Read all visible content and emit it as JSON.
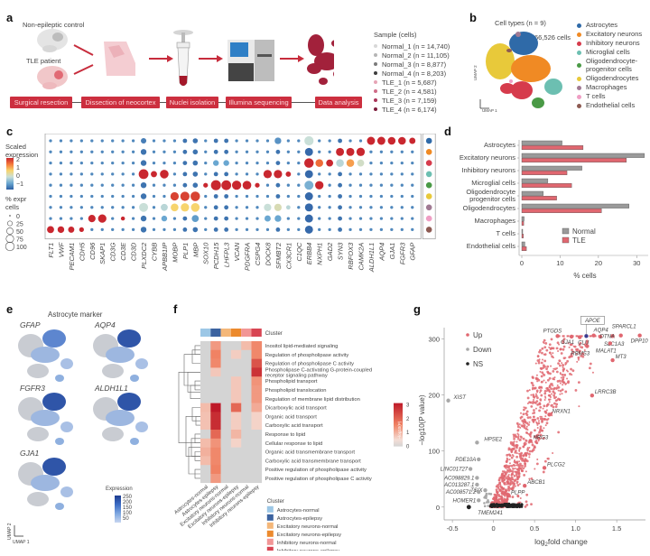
{
  "panels": {
    "a": {
      "letter": "a",
      "control_label": "Non-epileptic control",
      "patient_label": "TLE patient",
      "steps": [
        "Surgical resection",
        "Dissection of neocortex",
        "Nuclei isolation",
        "Illumina sequencing",
        "Data analysis"
      ],
      "sample_title": "Sample (cells)",
      "samples": [
        {
          "label": "Normal_1 (n = 14,740)",
          "color": "#d8d8d8"
        },
        {
          "label": "Normal_2 (n = 11,105)",
          "color": "#b5b5b5"
        },
        {
          "label": "Normal_3 (n = 8,877)",
          "color": "#7a7a7a"
        },
        {
          "label": "Normal_4 (n = 8,203)",
          "color": "#3d3d3d"
        },
        {
          "label": "TLE_1 (n = 5,687)",
          "color": "#e7a5b6"
        },
        {
          "label": "TLE_2 (n = 4,581)",
          "color": "#cf6c88"
        },
        {
          "label": "TLE_3 (n = 7,159)",
          "color": "#a93459"
        },
        {
          "label": "TLE_4 (n = 6,174)",
          "color": "#7d1d3c"
        }
      ]
    },
    "b": {
      "letter": "b",
      "title": "Cell types (n = 9)",
      "cell_count": "66,526 cells",
      "umap1": "UMAP 1",
      "umap2": "UMAP 2",
      "cell_types": [
        {
          "label": "Astrocytes",
          "color": "#2f6aa8"
        },
        {
          "label": "Excitatory neurons",
          "color": "#f08a24"
        },
        {
          "label": "Inhibitory neurons",
          "color": "#d63b4c"
        },
        {
          "label": "Microglial cells",
          "color": "#6cbfb1"
        },
        {
          "label": "Oligodendrocyte-\nprogenitor cells",
          "color": "#4a9a46"
        },
        {
          "label": "Oligodendrocytes",
          "color": "#e8c93a"
        },
        {
          "label": "Macrophages",
          "color": "#a07a93"
        },
        {
          "label": "T cells",
          "color": "#ef9ec4"
        },
        {
          "label": "Endothelial cells",
          "color": "#8d5a52"
        }
      ]
    },
    "c": {
      "letter": "c",
      "scale_title_1": "Scaled",
      "scale_title_2": "expression",
      "scale_ticks": [
        "2",
        "1",
        "0",
        "−1"
      ],
      "pct_title_1": "% expr",
      "pct_title_2": "cells",
      "pct_ticks": [
        "0",
        "25",
        "50",
        "75",
        "100"
      ]
    },
    "d": {
      "letter": "d"
    },
    "e": {
      "letter": "e",
      "title": "Astrocyte marker",
      "genes": [
        "GFAP",
        "AQP4",
        "FGFR3",
        "ALDH1L1",
        "GJA1"
      ],
      "expr_title": "Expression",
      "expr_ticks": [
        "250",
        "200",
        "150",
        "100",
        "50"
      ],
      "umap1": "UMAP 1",
      "umap2": "UMAP 2"
    },
    "f": {
      "letter": "f",
      "cluster_label": "Cluster",
      "scale_ticks": [
        "3",
        "2",
        "1",
        "0"
      ],
      "scale_title": "−log10(P)",
      "legend_title": "Cluster"
    },
    "g": {
      "letter": "g"
    }
  },
  "chart_data": [
    {
      "id": "c",
      "type": "dotplot",
      "title": "",
      "xlabel": "",
      "ylabel": "",
      "genes": [
        "FLT1",
        "VWF",
        "PECAM1",
        "CDH5",
        "CD96",
        "SKAP1",
        "CD3G",
        "CD3E",
        "CD3D",
        "PLXDC2",
        "CYBB",
        "APBB1IP",
        "MOBP",
        "PLP1",
        "MBP",
        "SOX10",
        "PCDH15",
        "LHFPL3",
        "VCAN",
        "PDGFRA",
        "CSPG4",
        "DOCK8",
        "SFMBT2",
        "CX3CR1",
        "C1QC",
        "ERBB4",
        "NXPH1",
        "GAD2",
        "SYN3",
        "RBFOX3",
        "CAMK2A",
        "ALDH1L1",
        "AQP4",
        "GJA1",
        "FGFR3",
        "GFAP"
      ],
      "rows": [
        "Astrocytes",
        "Excitatory neurons",
        "Inhibitory neurons",
        "Microglial cells",
        "Oligodendrocyte progenitor cells",
        "Oligodendrocytes",
        "Macrophages",
        "T cells",
        "Endothelial cells"
      ],
      "row_colors": [
        "#2f6aa8",
        "#f08a24",
        "#d63b4c",
        "#6cbfb1",
        "#4a9a46",
        "#e8c93a",
        "#a07a93",
        "#ef9ec4",
        "#8d5a52"
      ],
      "color_range": [
        -1,
        2
      ],
      "size_range": [
        0,
        100
      ],
      "notable": [
        {
          "row": "Endothelial cells",
          "genes": [
            "FLT1",
            "VWF",
            "PECAM1",
            "CDH5"
          ],
          "scaled": 2,
          "pct": [
            40,
            35,
            30,
            15
          ]
        },
        {
          "row": "T cells",
          "genes": [
            "CD96",
            "SKAP1",
            "CD3E"
          ],
          "scaled": 2,
          "pct": [
            45,
            60,
            10
          ]
        },
        {
          "row": "Microglial cells",
          "genes": [
            "PLXDC2",
            "CYBB",
            "APBB1IP",
            "DOCK8",
            "SFMBT2",
            "CX3CR1"
          ],
          "scaled": 2,
          "pct": [
            85,
            30,
            65,
            60,
            60,
            20
          ]
        },
        {
          "row": "Oligodendrocytes",
          "genes": [
            "MOBP",
            "PLP1",
            "MBP"
          ],
          "scaled": 1.8,
          "pct": [
            60,
            75,
            80
          ]
        },
        {
          "row": "Oligodendrocyte progenitor cells",
          "genes": [
            "SOX10",
            "PCDH15",
            "LHFPL3",
            "VCAN",
            "PDGFRA",
            "CSPG4",
            "NXPH1"
          ],
          "scaled": 2,
          "pct": [
            15,
            90,
            85,
            75,
            65,
            15,
            60
          ]
        },
        {
          "row": "Inhibitory neurons",
          "genes": [
            "ERBB4",
            "NXPH1",
            "GAD2",
            "SYN3",
            "RBFOX3",
            "CAMK2A"
          ],
          "scaled": [
            2,
            1.5,
            2,
            0.2,
            1.2,
            0.4
          ],
          "pct": [
            80,
            50,
            40,
            50,
            50,
            40
          ]
        },
        {
          "row": "Excitatory neurons",
          "genes": [
            "SYN3",
            "RBFOX3",
            "CAMK2A"
          ],
          "scaled": 2,
          "pct": [
            55,
            55,
            60
          ]
        },
        {
          "row": "Astrocytes",
          "genes": [
            "ALDH1L1",
            "AQP4",
            "GJA1",
            "FGFR3",
            "GFAP"
          ],
          "scaled": 2,
          "pct": [
            55,
            55,
            50,
            50,
            30
          ]
        }
      ]
    },
    {
      "id": "d",
      "type": "bar",
      "orientation": "horizontal",
      "title": "",
      "xlabel": "% cells",
      "ylabel": "",
      "categories": [
        "Astrocytes",
        "Excitatory neurons",
        "Inhibitory neurons",
        "Microglial cells",
        "Oligodendrocyte progenitor cells",
        "Oligodendrocytes",
        "Macrophages",
        "T cells",
        "Endothelial cells"
      ],
      "category_labels": [
        "Astrocytes",
        "Excitatory neurons",
        "Inhibitory neurons",
        "Microglial cells",
        "Oligodendrocyte\nprogenitor cells",
        "Oligodendrocytes",
        "Macrophages",
        "T cells",
        "Endothelial cells"
      ],
      "series": [
        {
          "name": "Normal",
          "color": "#9a9a9a",
          "values": [
            10.5,
            32,
            15.7,
            6.8,
            5.6,
            28,
            0.6,
            0.2,
            0.8
          ]
        },
        {
          "name": "TLE",
          "color": "#e06770",
          "values": [
            16,
            27.3,
            11.8,
            13,
            9.1,
            20.8,
            0.5,
            0.4,
            1.2
          ]
        }
      ],
      "xlim": [
        0,
        33
      ],
      "xticks": [
        0,
        10,
        20,
        30
      ],
      "legend": "bottom-right"
    },
    {
      "id": "f",
      "type": "heatmap",
      "title": "",
      "columns": [
        "Astrocytes-normal",
        "Astrocytes-epilepsy",
        "Excitatory neurons-normal",
        "Excitatory neurons-epilepsy",
        "Inhibitory neurons-normal",
        "Inhibitory neurons-epilepsy"
      ],
      "column_colors": [
        "#9cc7e6",
        "#3c63a0",
        "#f4b779",
        "#ec8a2d",
        "#f29696",
        "#d84553"
      ],
      "rows": [
        "Inositol lipid-mediated signaling",
        "Regulation of phospholipase activity",
        "Regulation of phospholipase C activity",
        "Phospholipase C-activating G-protein-coupled\nreceptor signaling pathway",
        "Phospholipid transport",
        "Phospholipid translocation",
        "Regulation of membrane lipid distribution",
        "Dicarboxylic acid transport",
        "Organic acid transport",
        "Carboxylic acid transport",
        "Response to lipid",
        "Cellular response to lipid",
        "Organic acid transmembrane transport",
        "Carboxylic acid transmembrane transport",
        "Positive regulation of phospholipase activity",
        "Positive regulation of phospholipase C activity"
      ],
      "values": [
        [
          0,
          1.2,
          0,
          0,
          0.6,
          1.5
        ],
        [
          0,
          1.6,
          0,
          0.3,
          0,
          1.5
        ],
        [
          0,
          1.5,
          0,
          0,
          0,
          2.3
        ],
        [
          0,
          0.4,
          0,
          0,
          0,
          2.8
        ],
        [
          0,
          0,
          0,
          0.4,
          0,
          1.3
        ],
        [
          0,
          0,
          0,
          0.4,
          0,
          1.2
        ],
        [
          0,
          0,
          0,
          0.4,
          0,
          1.2
        ],
        [
          0.6,
          3.2,
          0,
          2.0,
          0,
          0.9
        ],
        [
          0.5,
          2.9,
          0,
          0.3,
          0,
          0.2
        ],
        [
          0.5,
          2.9,
          0,
          0.3,
          0,
          0.2
        ],
        [
          0,
          2.0,
          0,
          0.7,
          0,
          0
        ],
        [
          0.6,
          1.3,
          0,
          0.2,
          0,
          0
        ],
        [
          0.8,
          1.5,
          0,
          0,
          0,
          0
        ],
        [
          0.6,
          1.5,
          0,
          0,
          0,
          0
        ],
        [
          0,
          1.6,
          0,
          0,
          0,
          0
        ],
        [
          0,
          1.2,
          0,
          0,
          0,
          0
        ]
      ],
      "color_range": [
        0,
        3
      ],
      "legend_title": "−log10(P)"
    },
    {
      "id": "g",
      "type": "scatter",
      "title": "",
      "xlabel": "log2fold change",
      "ylabel": "−log10(P value)",
      "xlim": [
        -0.6,
        1.85
      ],
      "ylim": [
        -10,
        320
      ],
      "xticks": [
        -0.5,
        0,
        0.5,
        1.0,
        1.5
      ],
      "xtick_labels": [
        "-0.5",
        "0",
        "0.5",
        "1.0",
        "1.5"
      ],
      "yticks": [
        0,
        100,
        200,
        300
      ],
      "legend": [
        {
          "name": "Up",
          "color": "#e06770"
        },
        {
          "name": "Down",
          "color": "#a8a8a8"
        },
        {
          "name": "NS",
          "color": "#222222"
        }
      ],
      "labeled_points": [
        {
          "gene": "APOE",
          "x": 1.13,
          "y": 305,
          "group": "highlight",
          "boxed": true
        },
        {
          "gene": "PTGDS",
          "x": 0.78,
          "y": 305,
          "group": "Up"
        },
        {
          "gene": "GJA1",
          "x": 0.95,
          "y": 304,
          "group": "Up"
        },
        {
          "gene": "CLU",
          "x": 1.05,
          "y": 303,
          "group": "Up"
        },
        {
          "gene": "AQP4",
          "x": 1.22,
          "y": 306,
          "group": "Up"
        },
        {
          "gene": "SLC1A3",
          "x": 1.3,
          "y": 304,
          "group": "Up"
        },
        {
          "gene": "SPARCL1",
          "x": 1.55,
          "y": 306,
          "group": "Up"
        },
        {
          "gene": "DTNA",
          "x": 1.45,
          "y": 305,
          "group": "Up"
        },
        {
          "gene": "DPP10",
          "x": 1.78,
          "y": 306,
          "group": "Up"
        },
        {
          "gene": "MALAT1",
          "x": 1.42,
          "y": 292,
          "group": "Up"
        },
        {
          "gene": "RBMS3",
          "x": 1.14,
          "y": 287,
          "group": "Up"
        },
        {
          "gene": "MT3",
          "x": 1.45,
          "y": 262,
          "group": "Up"
        },
        {
          "gene": "LRRC3B",
          "x": 1.2,
          "y": 199,
          "group": "Up"
        },
        {
          "gene": "XIST",
          "x": -0.55,
          "y": 190,
          "group": "Down"
        },
        {
          "gene": "NRXN1",
          "x": 0.68,
          "y": 165,
          "group": "Up"
        },
        {
          "gene": "NRG3",
          "x": 0.45,
          "y": 118,
          "group": "Up"
        },
        {
          "gene": "HPSE2",
          "x": -0.2,
          "y": 115,
          "group": "Down"
        },
        {
          "gene": "PDE10A",
          "x": -0.18,
          "y": 85,
          "group": "Down"
        },
        {
          "gene": "PLCG2",
          "x": 0.62,
          "y": 70,
          "group": "Up"
        },
        {
          "gene": "LINC01727",
          "x": -0.28,
          "y": 68,
          "group": "Down"
        },
        {
          "gene": "AC098829.1",
          "x": -0.2,
          "y": 52,
          "group": "Down"
        },
        {
          "gene": "AC013287.1",
          "x": -0.2,
          "y": 40,
          "group": "Down"
        },
        {
          "gene": "ABCB1",
          "x": 0.38,
          "y": 38,
          "group": "Up"
        },
        {
          "gene": "TSIX",
          "x": -0.1,
          "y": 30,
          "group": "Down"
        },
        {
          "gene": "AC008571.2",
          "x": -0.18,
          "y": 27,
          "group": "Down"
        },
        {
          "gene": "HOMER1",
          "x": -0.18,
          "y": 12,
          "group": "Down"
        },
        {
          "gene": "PLPP",
          "x": 0.18,
          "y": 20,
          "group": "Up"
        },
        {
          "gene": "TMEM241",
          "x": -0.3,
          "y": 0,
          "group": "NS"
        }
      ]
    }
  ]
}
